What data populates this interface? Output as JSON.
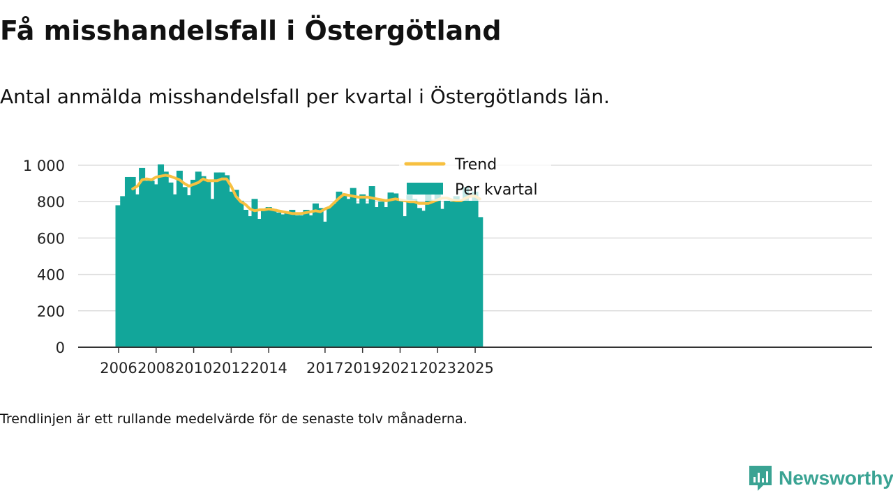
{
  "header": {
    "title": "Få misshandelsfall i Östergötland",
    "subtitle": "Antal anmälda misshandelsfall per kvartal i Östergötlands län."
  },
  "footer": {
    "note": "Trendlinjen är ett rullande medelvärde för de senaste tolv månaderna.",
    "brand": "Newsworthy"
  },
  "colors": {
    "bars": "#12a69a",
    "trend": "#f7c040",
    "grid": "#dddddd",
    "axis": "#333333",
    "brand": "#3aa393"
  },
  "chart_data": {
    "type": "bar",
    "title": "Få misshandelsfall i Östergötland",
    "subtitle": "Antal anmälda misshandelsfall per kvartal i Östergötlands län.",
    "xlabel": "",
    "ylabel": "",
    "ylim": [
      0,
      1000
    ],
    "yticks": [
      0,
      200,
      400,
      600,
      800,
      1000
    ],
    "ytick_labels": [
      "0",
      "200",
      "400",
      "600",
      "800",
      "1 000"
    ],
    "xticks": [
      "2006",
      "2008",
      "2010",
      "2012",
      "2014",
      "2017",
      "2019",
      "2021",
      "2023",
      "2025"
    ],
    "grid": true,
    "legend_position": "top-center",
    "start_quarter": "2006-Q1",
    "series": [
      {
        "name": "Per kvartal",
        "type": "bar",
        "values": [
          780,
          830,
          935,
          935,
          840,
          985,
          915,
          915,
          895,
          1005,
          965,
          905,
          840,
          970,
          880,
          835,
          920,
          965,
          940,
          920,
          815,
          960,
          960,
          945,
          855,
          865,
          805,
          755,
          720,
          815,
          705,
          760,
          770,
          760,
          740,
          730,
          740,
          755,
          725,
          725,
          755,
          725,
          790,
          765,
          690,
          770,
          790,
          855,
          840,
          815,
          875,
          790,
          840,
          790,
          885,
          770,
          800,
          770,
          850,
          845,
          810,
          720,
          835,
          815,
          765,
          750,
          875,
          810,
          850,
          760,
          805,
          800,
          830,
          810,
          880,
          805,
          855,
          715
        ]
      },
      {
        "name": "Trend",
        "type": "line",
        "values": [
          null,
          null,
          null,
          870,
          885,
          920,
          925,
          920,
          935,
          940,
          945,
          940,
          930,
          920,
          900,
          885,
          895,
          905,
          925,
          915,
          915,
          915,
          925,
          925,
          885,
          830,
          800,
          785,
          760,
          750,
          755,
          755,
          760,
          755,
          750,
          745,
          740,
          735,
          735,
          735,
          740,
          745,
          750,
          745,
          760,
          770,
          795,
          820,
          840,
          835,
          830,
          825,
          825,
          825,
          820,
          815,
          810,
          805,
          810,
          815,
          810,
          805,
          800,
          800,
          790,
          790,
          790,
          800,
          810,
          820,
          820,
          810,
          805,
          805,
          820,
          830,
          830,
          815
        ]
      }
    ]
  }
}
